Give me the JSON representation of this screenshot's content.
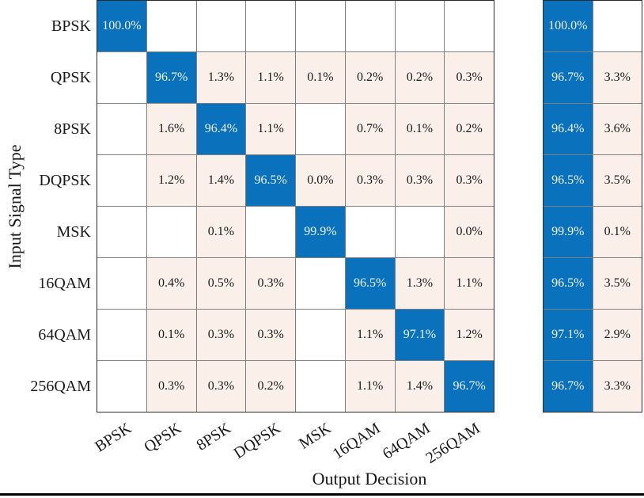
{
  "chart_data": {
    "type": "heatmap",
    "subtype": "confusion-matrix",
    "title": "",
    "xlabel": "Output Decision",
    "ylabel": "Input Signal Type",
    "classes": [
      "BPSK",
      "QPSK",
      "8PSK",
      "DQPSK",
      "MSK",
      "16QAM",
      "64QAM",
      "256QAM"
    ],
    "matrix_row_percent": [
      [
        100.0,
        null,
        null,
        null,
        null,
        null,
        null,
        null
      ],
      [
        null,
        96.7,
        1.3,
        1.1,
        0.1,
        0.2,
        0.2,
        0.3
      ],
      [
        null,
        1.6,
        96.4,
        1.1,
        null,
        0.7,
        0.1,
        0.2
      ],
      [
        null,
        1.2,
        1.4,
        96.5,
        0.0,
        0.3,
        0.3,
        0.3
      ],
      [
        null,
        null,
        0.1,
        null,
        99.9,
        null,
        null,
        0.0
      ],
      [
        null,
        0.4,
        0.5,
        0.3,
        null,
        96.5,
        1.3,
        1.1
      ],
      [
        null,
        0.1,
        0.3,
        0.3,
        null,
        1.1,
        97.1,
        1.2
      ],
      [
        null,
        0.3,
        0.3,
        0.2,
        null,
        1.1,
        1.4,
        96.7
      ]
    ],
    "row_summary": {
      "correct_percent": [
        100.0,
        96.7,
        96.4,
        96.5,
        99.9,
        96.5,
        97.1,
        96.7
      ],
      "incorrect_percent": [
        null,
        3.3,
        3.6,
        3.5,
        0.1,
        3.5,
        2.9,
        3.3
      ]
    },
    "value_suffix": "%",
    "value_decimals": 1,
    "legend_position": "none",
    "grid": true,
    "colors": {
      "diagonal_fill": "#0a72bd",
      "off_diagonal_fill": "#faf0e9",
      "empty_fill": "#ffffff",
      "grid_line": "#808080",
      "outer_border": "#2b2b2b",
      "diagonal_text": "#f2f3f5",
      "text": "#1a1a1a",
      "bottom_rule": "#000000"
    }
  }
}
